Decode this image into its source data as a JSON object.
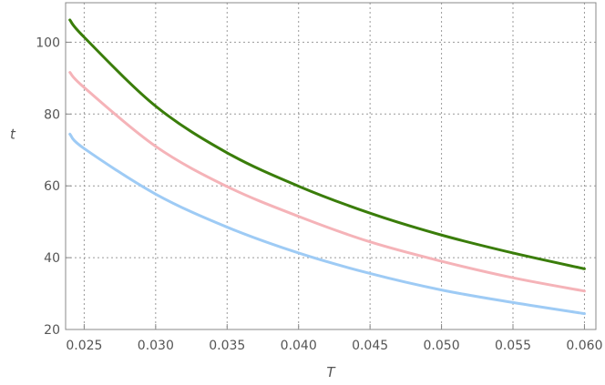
{
  "chart_data": {
    "type": "line",
    "title": "",
    "xlabel": "T",
    "ylabel": "t",
    "xlim": [
      0.0237,
      0.0608
    ],
    "ylim": [
      20,
      111
    ],
    "grid": true,
    "x_ticks": [
      0.025,
      0.03,
      0.035,
      0.04,
      0.045,
      0.05,
      0.055,
      0.06
    ],
    "x_tick_labels": [
      "0.025",
      "0.030",
      "0.035",
      "0.040",
      "0.045",
      "0.050",
      "0.055",
      "0.060"
    ],
    "y_ticks": [
      20,
      40,
      60,
      80,
      100
    ],
    "y_tick_labels": [
      "20",
      "40",
      "60",
      "80",
      "100"
    ],
    "series": [
      {
        "name": "green",
        "color": "#3a7d0a",
        "x": [
          0.024,
          0.025,
          0.03,
          0.035,
          0.04,
          0.045,
          0.05,
          0.055,
          0.06
        ],
        "y": [
          106.2,
          101.4,
          82.2,
          69.2,
          59.9,
          52.4,
          46.3,
          41.3,
          36.9
        ]
      },
      {
        "name": "pink",
        "color": "#f5b3b8",
        "x": [
          0.024,
          0.025,
          0.03,
          0.035,
          0.04,
          0.045,
          0.05,
          0.055,
          0.06
        ],
        "y": [
          91.6,
          87.4,
          71.0,
          59.8,
          51.5,
          44.4,
          39.0,
          34.4,
          30.7
        ]
      },
      {
        "name": "blue",
        "color": "#9ecbf5",
        "x": [
          0.024,
          0.025,
          0.03,
          0.035,
          0.04,
          0.045,
          0.05,
          0.055,
          0.06
        ],
        "y": [
          74.4,
          70.4,
          57.7,
          48.5,
          41.3,
          35.6,
          31.0,
          27.5,
          24.4
        ]
      }
    ]
  }
}
